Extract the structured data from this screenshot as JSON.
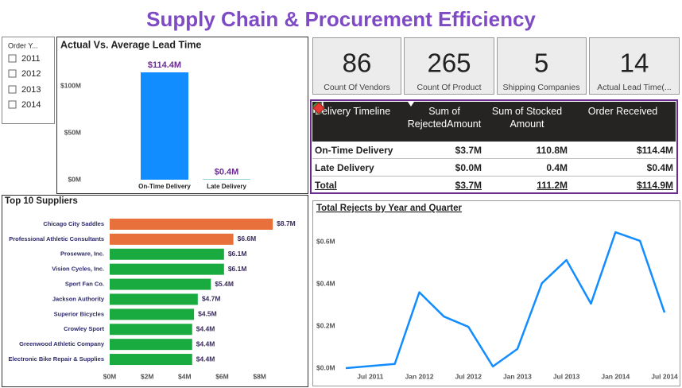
{
  "header": {
    "title": "Supply Chain & Procurement Efficiency"
  },
  "slicer": {
    "label": "Order Y...",
    "items": [
      "2011",
      "2012",
      "2013",
      "2014"
    ]
  },
  "cards": [
    {
      "value": "86",
      "label": "Count Of Vendors"
    },
    {
      "value": "265",
      "label": "Count Of Product"
    },
    {
      "value": "5",
      "label": "Shipping Companies"
    },
    {
      "value": "14",
      "label": "Actual Lead Time(..."
    }
  ],
  "table": {
    "columns": [
      "Delivery Timeline",
      "Sum of RejectedAmount",
      "Sum of Stocked Amount",
      "Order Received"
    ],
    "rows": [
      [
        "On-Time Delivery",
        "$3.7M",
        "110.8M",
        "$114.4M"
      ],
      [
        "Late Delivery",
        "$0.0M",
        "0.4M",
        "$0.4M"
      ]
    ],
    "total": [
      "Total",
      "$3.7M",
      "111.2M",
      "$114.9M"
    ]
  },
  "chart_data": [
    {
      "type": "bar",
      "title": "Actual Vs. Average Lead Time",
      "categories": [
        "On-Time Delivery",
        "Late Delivery"
      ],
      "values": [
        114400000,
        400000
      ],
      "value_labels": [
        "$114.4M",
        "$0.4M"
      ],
      "colors": [
        "#118dff",
        "#1aa0b0"
      ],
      "ylim": [
        0,
        125000000
      ],
      "yticks": [
        {
          "value": 0,
          "label": "$0M"
        },
        {
          "value": 50000000,
          "label": "$50M"
        },
        {
          "value": 100000000,
          "label": "$100M"
        }
      ],
      "grid": false
    },
    {
      "type": "barh",
      "title": "Top 10 Suppliers",
      "categories": [
        "Chicago City Saddles",
        "Professional Athletic Consultants",
        "Proseware, Inc.",
        "Vision Cycles, Inc.",
        "Sport Fan Co.",
        "Jackson Authority",
        "Superior Bicycles",
        "Crowley Sport",
        "Greenwood Athletic Company",
        "Electronic Bike Repair & Supplies"
      ],
      "values": [
        8700000,
        6600000,
        6100000,
        6100000,
        5400000,
        4700000,
        4500000,
        4400000,
        4400000,
        4400000
      ],
      "value_labels": [
        "$8.7M",
        "$6.6M",
        "$6.1M",
        "$6.1M",
        "$5.4M",
        "$4.7M",
        "$4.5M",
        "$4.4M",
        "$4.4M",
        "$4.4M"
      ],
      "colors": [
        "#e8703a",
        "#e8703a",
        "#1aab40",
        "#1aab40",
        "#1aab40",
        "#1aab40",
        "#1aab40",
        "#1aab40",
        "#1aab40",
        "#1aab40"
      ],
      "xlim": [
        0,
        9500000
      ],
      "xticks": [
        {
          "value": 0,
          "label": "$0M"
        },
        {
          "value": 2000000,
          "label": "$2M"
        },
        {
          "value": 4000000,
          "label": "$4M"
        },
        {
          "value": 6000000,
          "label": "$6M"
        },
        {
          "value": 8000000,
          "label": "$8M"
        }
      ],
      "grid": false
    },
    {
      "type": "line",
      "title": "Total Rejects by Year and Quarter",
      "x": [
        "2011-04",
        "2011-10",
        "2012-01",
        "2012-04",
        "2012-07",
        "2012-10",
        "2013-01",
        "2013-04",
        "2013-07",
        "2013-10",
        "2014-01",
        "2014-04",
        "2014-07"
      ],
      "values": [
        0,
        20000,
        360000,
        245000,
        196000,
        8000,
        91000,
        403000,
        513000,
        306000,
        645000,
        604000,
        264000
      ],
      "color": "#118dff",
      "xlim": [
        "2011-04",
        "2014-07"
      ],
      "xticks": [
        {
          "value": "2011-07",
          "label": "Jul 2011"
        },
        {
          "value": "2012-01",
          "label": "Jan 2012"
        },
        {
          "value": "2012-07",
          "label": "Jul 2012"
        },
        {
          "value": "2013-01",
          "label": "Jan 2013"
        },
        {
          "value": "2013-07",
          "label": "Jul 2013"
        },
        {
          "value": "2014-01",
          "label": "Jan 2014"
        },
        {
          "value": "2014-07",
          "label": "Jul 2014"
        }
      ],
      "ylim": [
        0,
        700000
      ],
      "yticks": [
        {
          "value": 0,
          "label": "$0.0M"
        },
        {
          "value": 200000,
          "label": "$0.2M"
        },
        {
          "value": 400000,
          "label": "$0.4M"
        },
        {
          "value": 600000,
          "label": "$0.6M"
        }
      ],
      "grid": false
    }
  ]
}
